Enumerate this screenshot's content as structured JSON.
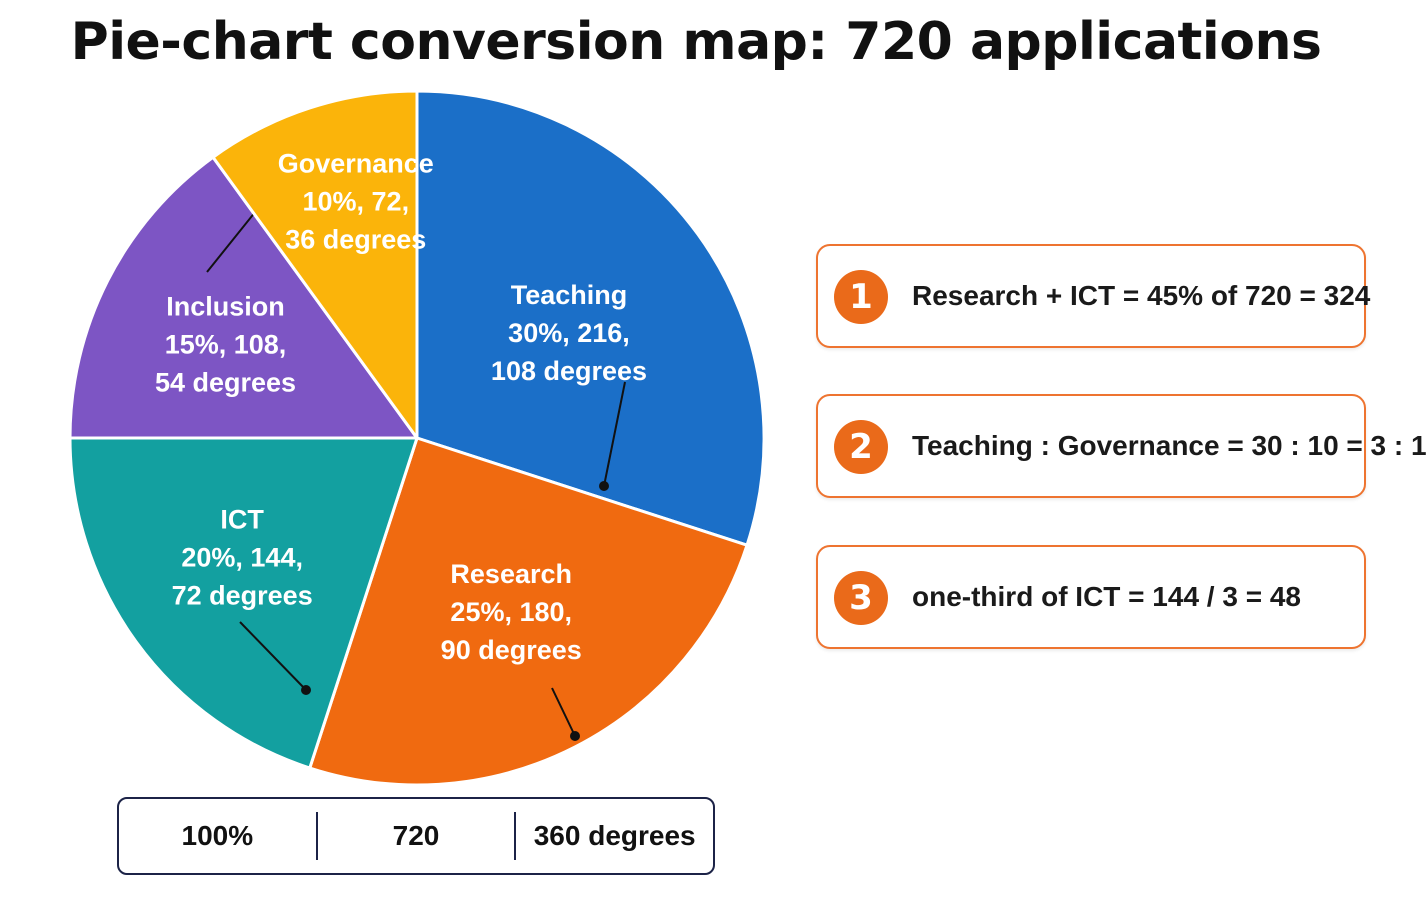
{
  "title": "Pie-chart conversion map: 720 applications",
  "chart_data": {
    "type": "pie",
    "title": "Pie-chart conversion map: 720 applications",
    "total": 720,
    "slices": [
      {
        "name": "Teaching",
        "percent": 30,
        "count": 216,
        "degrees": 108,
        "color": "#1b6fc8",
        "lines": [
          "Teaching",
          "30%, 216,",
          "108 degrees"
        ]
      },
      {
        "name": "Research",
        "percent": 25,
        "count": 180,
        "degrees": 90,
        "color": "#f06a10",
        "lines": [
          "Research",
          "25%, 180,",
          "90 degrees"
        ]
      },
      {
        "name": "ICT",
        "percent": 20,
        "count": 144,
        "degrees": 72,
        "color": "#13a0a0",
        "lines": [
          "ICT",
          "20%, 144,",
          "72 degrees"
        ]
      },
      {
        "name": "Inclusion",
        "percent": 15,
        "count": 108,
        "degrees": 54,
        "color": "#7d55c4",
        "lines": [
          "Inclusion",
          "15%, 108,",
          "54 degrees"
        ]
      },
      {
        "name": "Governance",
        "percent": 10,
        "count": 72,
        "degrees": 36,
        "color": "#fbb40a",
        "lines": [
          "Governance",
          "10%, 72,",
          "36 degrees"
        ]
      }
    ]
  },
  "notes": [
    {
      "number": "1",
      "text": "Research + ICT = 45% of 720 = 324"
    },
    {
      "number": "2",
      "text": "Teaching : Governance = 30 : 10 = 3 : 1"
    },
    {
      "number": "3",
      "text": "one-third of ICT = 144 / 3 = 48"
    }
  ],
  "totals": {
    "percent": "100%",
    "count": "720",
    "degrees": "360 degrees"
  },
  "colors": {
    "accent": "#ee7430",
    "number_badge": "#ea6a1a",
    "totals_border": "#1c2347"
  }
}
